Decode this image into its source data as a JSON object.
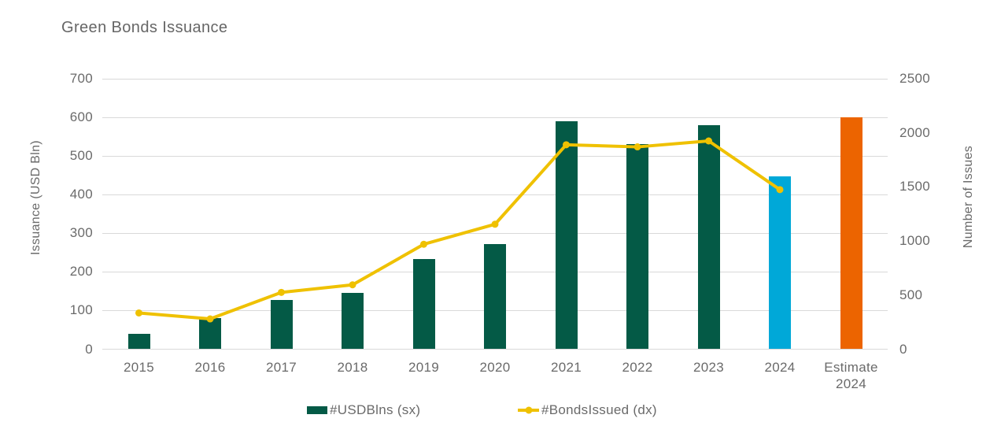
{
  "title": "Green Bonds Issuance",
  "left_axis": {
    "title": "Issuance (USD Bln)",
    "min": 0,
    "max": 700,
    "ticks": [
      0,
      100,
      200,
      300,
      400,
      500,
      600,
      700
    ]
  },
  "right_axis": {
    "title": "Number of Issues",
    "min": 0,
    "max": 2500,
    "ticks": [
      0,
      500,
      1000,
      1500,
      2000,
      2500
    ]
  },
  "legend": [
    {
      "label": "#USDBlns (sx)",
      "series": "bars"
    },
    {
      "label": "#BondsIssued (dx)",
      "series": "line"
    }
  ],
  "colors": {
    "background": "#FFFFFF",
    "bar_default": "#045A46",
    "bar_2024": "#00A8D8",
    "bar_estimate_2024": "#EC6400",
    "line": "#EFC100",
    "grid": "#D9D9D9",
    "text": "#6A6A6A"
  },
  "chart_data": {
    "type": "bar+line combo",
    "categories": [
      "2015",
      "2016",
      "2017",
      "2018",
      "2019",
      "2020",
      "2021",
      "2022",
      "2023",
      "2024",
      "Estimate 2024"
    ],
    "series": [
      {
        "name": "#USDBlns (sx)",
        "type": "bar",
        "axis": "left",
        "values": [
          40,
          80,
          128,
          145,
          234,
          272,
          589,
          530,
          579,
          448,
          600
        ],
        "bar_colors": [
          "#045A46",
          "#045A46",
          "#045A46",
          "#045A46",
          "#045A46",
          "#045A46",
          "#045A46",
          "#045A46",
          "#045A46",
          "#00A8D8",
          "#EC6400"
        ]
      },
      {
        "name": "#BondsIssued (dx)",
        "type": "line",
        "axis": "right",
        "values": [
          335,
          280,
          525,
          595,
          970,
          1155,
          1890,
          1870,
          1925,
          1475,
          null
        ]
      }
    ],
    "left_ylim": [
      0,
      700
    ],
    "right_ylim": [
      0,
      2500
    ],
    "grid": "horizontal-only",
    "legend_position": "bottom"
  }
}
